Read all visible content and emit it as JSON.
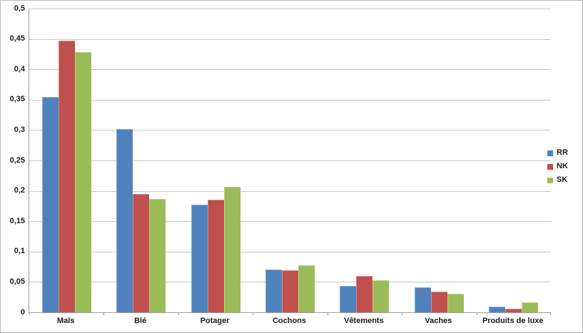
{
  "chart_data": {
    "type": "bar",
    "title": "",
    "xlabel": "",
    "ylabel": "",
    "categories": [
      "Maïs",
      "Blé",
      "Potager",
      "Cochons",
      "Vêtements",
      "Vaches",
      "Produits de luxe"
    ],
    "series": [
      {
        "name": "RR",
        "color": "#4F81BD",
        "values": [
          0.355,
          0.302,
          0.177,
          0.07,
          0.044,
          0.041,
          0.009
        ]
      },
      {
        "name": "NK",
        "color": "#C0504D",
        "values": [
          0.447,
          0.195,
          0.185,
          0.069,
          0.06,
          0.034,
          0.006
        ]
      },
      {
        "name": "SK",
        "color": "#9BBB59",
        "values": [
          0.428,
          0.187,
          0.206,
          0.077,
          0.053,
          0.03,
          0.016
        ]
      }
    ],
    "ylim": [
      0,
      0.5
    ],
    "y_ticks": [
      {
        "value": 0.0,
        "label": "0"
      },
      {
        "value": 0.05,
        "label": "0,05"
      },
      {
        "value": 0.1,
        "label": "0,1"
      },
      {
        "value": 0.15,
        "label": "0,15"
      },
      {
        "value": 0.2,
        "label": "0,2"
      },
      {
        "value": 0.25,
        "label": "0,25"
      },
      {
        "value": 0.3,
        "label": "0,3"
      },
      {
        "value": 0.35,
        "label": "0,35"
      },
      {
        "value": 0.4,
        "label": "0,4"
      },
      {
        "value": 0.45,
        "label": "0,45"
      },
      {
        "value": 0.5,
        "label": "0,5"
      }
    ],
    "grid": "horizontal",
    "legend_position": "right"
  },
  "colors": {
    "gridline": "#C6C6C6",
    "axis_line": "#9C9C9C",
    "label_text": "#1A1A1A",
    "frame_border": "#BDBDBD",
    "background": "#FFFFFF"
  }
}
